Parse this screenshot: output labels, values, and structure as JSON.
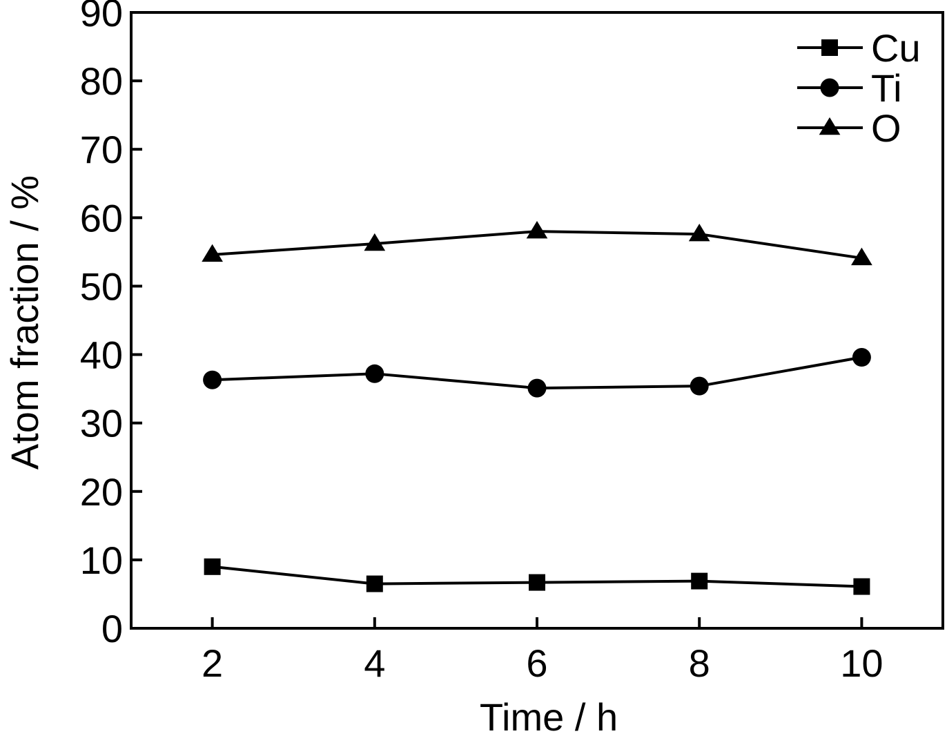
{
  "chart_data": {
    "type": "line",
    "title": "",
    "xlabel": "Time / h",
    "ylabel": "Atom fraction / %",
    "x": [
      2,
      4,
      6,
      8,
      10
    ],
    "xlim": [
      1,
      11
    ],
    "ylim": [
      0,
      90
    ],
    "xticks": [
      2,
      4,
      6,
      8,
      10
    ],
    "yticks": [
      0,
      10,
      20,
      30,
      40,
      50,
      60,
      70,
      80,
      90
    ],
    "grid": false,
    "legend_position": "top-right",
    "series": [
      {
        "name": "Cu",
        "marker": "square",
        "values": [
          9.0,
          6.5,
          6.7,
          6.9,
          6.1
        ]
      },
      {
        "name": "Ti",
        "marker": "circle",
        "values": [
          36.3,
          37.2,
          35.1,
          35.4,
          39.6
        ]
      },
      {
        "name": "O",
        "marker": "triangle",
        "values": [
          54.6,
          56.2,
          58.0,
          57.6,
          54.1
        ]
      }
    ],
    "colors": {
      "line": "#000000",
      "marker": "#000000",
      "background": "#ffffff"
    }
  }
}
